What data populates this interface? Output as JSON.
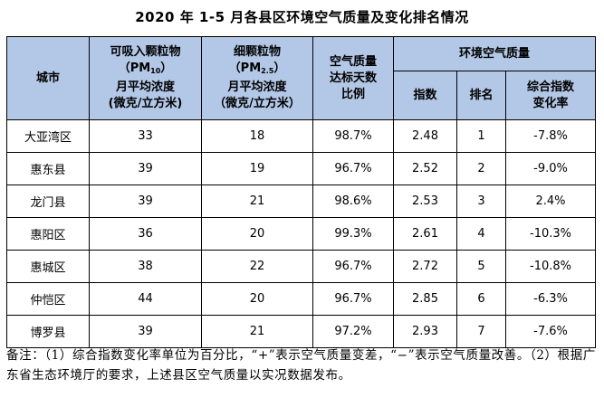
{
  "title": "2020 年 1-5 月各县区环境空气质量及变化排名情况",
  "headers": {
    "city": "城市",
    "pm10": {
      "line1": "可吸入颗粒物",
      "unit_pre": "（PM",
      "unit_sub": "10",
      "unit_post": "）",
      "line3": "月平均浓度",
      "line4": "(微克/立方米)"
    },
    "pm25": {
      "line1": "细颗粒物",
      "unit_pre": "（PM",
      "unit_sub": "2.5",
      "unit_post": "）",
      "line3": "月平均浓度",
      "line4": "（微克/立方米）"
    },
    "ratio": {
      "line1": "空气质量",
      "line2": "达标天数",
      "line3": "比例"
    },
    "aq_group": "环境空气质量",
    "index": "指数",
    "rank": "排名",
    "change": {
      "line1": "综合指数",
      "line2": "变化率"
    }
  },
  "rows": [
    {
      "city": "大亚湾区",
      "pm10": "33",
      "pm25": "18",
      "ratio": "98.7%",
      "index": "2.48",
      "rank": "1",
      "change": "-7.8%"
    },
    {
      "city": "惠东县",
      "pm10": "39",
      "pm25": "19",
      "ratio": "96.7%",
      "index": "2.52",
      "rank": "2",
      "change": "-9.0%"
    },
    {
      "city": "龙门县",
      "pm10": "39",
      "pm25": "21",
      "ratio": "98.6%",
      "index": "2.53",
      "rank": "3",
      "change": "2.4%"
    },
    {
      "city": "惠阳区",
      "pm10": "36",
      "pm25": "20",
      "ratio": "99.3%",
      "index": "2.61",
      "rank": "4",
      "change": "-10.3%"
    },
    {
      "city": "惠城区",
      "pm10": "38",
      "pm25": "22",
      "ratio": "96.7%",
      "index": "2.72",
      "rank": "5",
      "change": "-10.8%"
    },
    {
      "city": "仲恺区",
      "pm10": "44",
      "pm25": "20",
      "ratio": "96.7%",
      "index": "2.85",
      "rank": "6",
      "change": "-6.3%"
    },
    {
      "city": "博罗县",
      "pm10": "39",
      "pm25": "21",
      "ratio": "97.2%",
      "index": "2.93",
      "rank": "7",
      "change": "-7.6%"
    }
  ],
  "note": "备注：（1）综合指数变化率单位为百分比，“+”表示空气质量变差，“−”表示空气质量改善。（2）根据广东省生态环境厅的要求，上述县区空气质量以实况数据发布。"
}
